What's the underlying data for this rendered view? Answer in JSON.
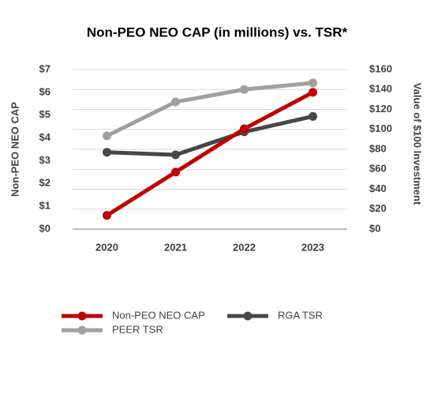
{
  "chart_data": {
    "type": "line",
    "title": "Non-PEO NEO CAP (in millions) vs. TSR*",
    "y_label": "Non-PEO NEO CAP",
    "y2_label": "Value of $100 Investment",
    "categories": [
      "2020",
      "2021",
      "2022",
      "2023"
    ],
    "series": [
      {
        "name": "Non-PEO NEO CAP",
        "color": "#c00000",
        "values": [
          0.6,
          2.5,
          4.4,
          6.0
        ]
      },
      {
        "name": "RGA TSR",
        "color": "#474747",
        "axis": "y2",
        "values": [
          77,
          74.5,
          97.5,
          113
        ]
      },
      {
        "name": "PEER TSR",
        "color": "#a0a0a0",
        "axis": "y2",
        "values": [
          93.5,
          127.5,
          140,
          146.5
        ]
      }
    ],
    "ylim": [
      0,
      7
    ],
    "yticks": [
      {
        "value": 0,
        "label": "$0"
      },
      {
        "value": 1,
        "label": "$1"
      },
      {
        "value": 2,
        "label": "$2"
      },
      {
        "value": 3,
        "label": "$3"
      },
      {
        "value": 4,
        "label": "$4"
      },
      {
        "value": 5,
        "label": "$5"
      },
      {
        "value": 6,
        "label": "$6"
      },
      {
        "value": 7,
        "label": "$7"
      }
    ],
    "y2lim": [
      0,
      160
    ],
    "y2ticks": [
      {
        "value": 0,
        "label": "$0"
      },
      {
        "value": 20,
        "label": "$20"
      },
      {
        "value": 40,
        "label": "$40"
      },
      {
        "value": 60,
        "label": "$60"
      },
      {
        "value": 80,
        "label": "$80"
      },
      {
        "value": 100,
        "label": "$100"
      },
      {
        "value": 120,
        "label": "$120"
      },
      {
        "value": 140,
        "label": "$140"
      },
      {
        "value": 160,
        "label": "$160"
      }
    ],
    "grid": true,
    "legend": "bottom"
  }
}
